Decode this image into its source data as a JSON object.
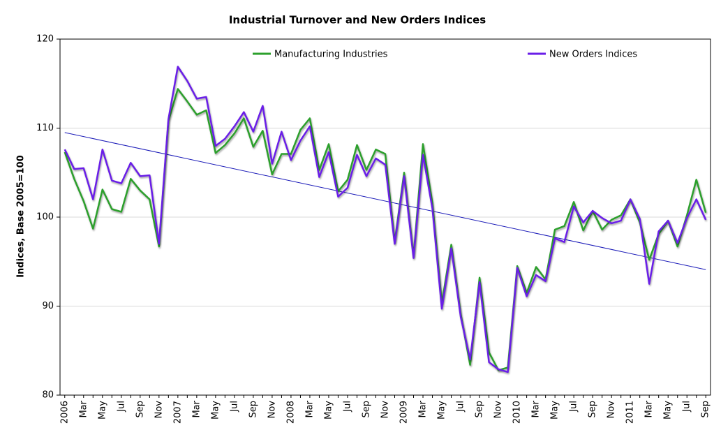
{
  "chart_data": {
    "type": "line",
    "title": "Industrial Turnover and New Orders Indices",
    "y_label": "Indices, Base 2005=100",
    "categories": [
      "2006",
      null,
      "Mar",
      null,
      "May",
      null,
      "Jul",
      null,
      "Sep",
      null,
      "Nov",
      null,
      "2007",
      null,
      "Mar",
      null,
      "May",
      null,
      "Jul",
      null,
      "Sep",
      null,
      "Nov",
      null,
      "2008",
      null,
      "Mar",
      null,
      "May",
      null,
      "Jul",
      null,
      "Sep",
      null,
      "Nov",
      null,
      "2009",
      null,
      "Mar",
      null,
      "May",
      null,
      "Jul",
      null,
      "Sep",
      null,
      "Nov",
      null,
      "2010",
      null,
      "Mar",
      null,
      "May",
      null,
      "Jul",
      null,
      "Sep",
      null,
      "Nov",
      null,
      "2011",
      null,
      "Mar",
      null,
      "May",
      null,
      "Jul",
      null,
      "Sep"
    ],
    "series": [
      {
        "name": "Manufacturing Industries",
        "color": "#2ca02c",
        "values": [
          107.3,
          104.3,
          101.8,
          98.7,
          103.1,
          100.9,
          100.6,
          104.3,
          103.0,
          102.0,
          96.7,
          110.8,
          114.4,
          113.0,
          111.5,
          112.0,
          107.2,
          108.1,
          109.4,
          111.1,
          107.9,
          109.7,
          104.8,
          107.1,
          107.1,
          109.8,
          111.1,
          105.3,
          108.2,
          102.9,
          104.2,
          108.1,
          105.3,
          107.6,
          107.1,
          97.2,
          105.0,
          95.6,
          108.2,
          101.6,
          90.3,
          96.9,
          89.1,
          83.4,
          93.2,
          84.8,
          82.8,
          83.1,
          94.5,
          91.5,
          94.4,
          93.0,
          98.6,
          99.0,
          101.7,
          98.5,
          100.7,
          98.6,
          99.7,
          100.2,
          102.0,
          99.4,
          95.2,
          98.1,
          99.6,
          96.7,
          100.2,
          104.2,
          100.5
        ]
      },
      {
        "name": "New Orders Indices",
        "color": "#6a1ee8",
        "values": [
          107.6,
          105.4,
          105.5,
          102.0,
          107.6,
          104.1,
          103.8,
          106.1,
          104.6,
          104.7,
          97.0,
          111.0,
          116.9,
          115.3,
          113.3,
          113.5,
          108.0,
          108.8,
          110.2,
          111.8,
          109.6,
          112.5,
          106.0,
          109.6,
          106.4,
          108.6,
          110.2,
          104.5,
          107.3,
          102.3,
          103.3,
          107.0,
          104.6,
          106.6,
          105.9,
          97.0,
          104.6,
          95.4,
          107.0,
          101.0,
          89.7,
          96.5,
          88.8,
          84.0,
          92.7,
          83.7,
          82.9,
          82.6,
          94.3,
          91.1,
          93.5,
          92.8,
          97.6,
          97.2,
          101.2,
          99.4,
          100.7,
          99.9,
          99.3,
          99.6,
          102.0,
          99.8,
          92.5,
          98.4,
          99.6,
          97.1,
          99.9,
          102.0,
          99.7
        ]
      }
    ],
    "trend": {
      "color": "#1a1ab8",
      "start": 109.5,
      "end": 94.1
    },
    "ylim": [
      80,
      120
    ],
    "yticks": [
      80,
      90,
      100,
      110,
      120
    ],
    "grid": true,
    "legend": "top"
  }
}
